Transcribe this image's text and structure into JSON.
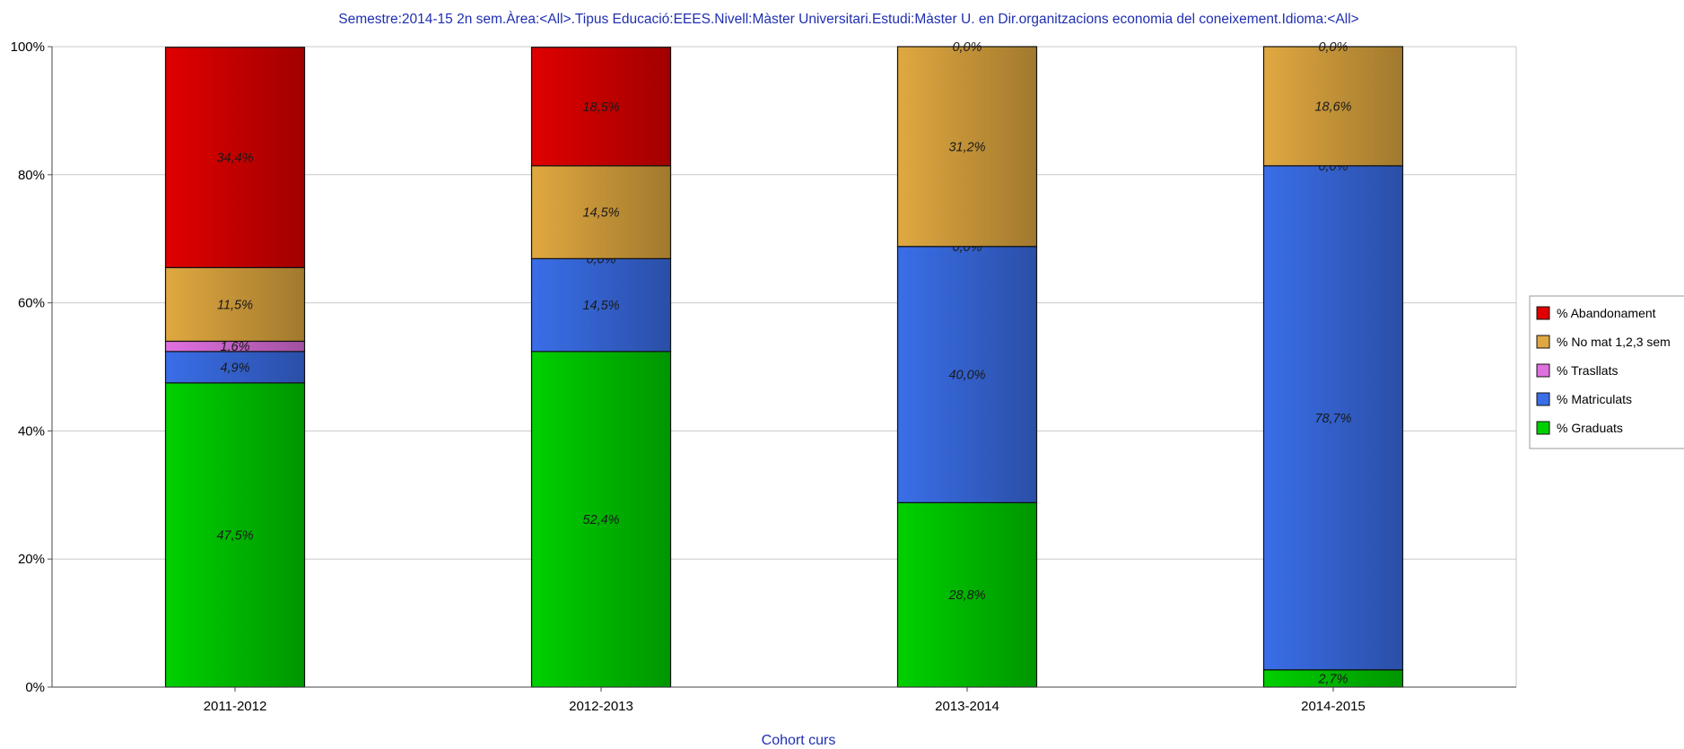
{
  "chart_data": {
    "type": "bar",
    "stacked": true,
    "title": "Semestre:2014-15 2n sem.Àrea:<All>.Tipus Educació:EEES.Nivell:Màster Universitari.Estudi:Màster U. en Dir.organitzacions economia del coneixement.Idioma:<All>",
    "xlabel": "Cohort curs",
    "ylabel": "",
    "ylim": [
      0,
      100
    ],
    "y_ticks": [
      "0%",
      "20%",
      "40%",
      "60%",
      "80%",
      "100%"
    ],
    "grid": true,
    "legend_position": "right",
    "categories": [
      "2011-2012",
      "2012-2013",
      "2013-2014",
      "2014-2015"
    ],
    "series": [
      {
        "name": "% Graduats",
        "color": "#00d000",
        "values": [
          47.5,
          52.4,
          28.8,
          2.7
        ],
        "labels": [
          "47,5%",
          "52,4%",
          "28,8%",
          "2,7%"
        ]
      },
      {
        "name": "% Matriculats",
        "color": "#3a6ee8",
        "values": [
          4.9,
          14.5,
          40.0,
          78.7
        ],
        "labels": [
          "4,9%",
          "14,5%",
          "40,0%",
          "78,7%"
        ]
      },
      {
        "name": "% Trasllats",
        "color": "#e070e0",
        "values": [
          1.6,
          0.0,
          0.0,
          0.0
        ],
        "labels": [
          "1,6%",
          "0,0%",
          "0,0%",
          "0,0%"
        ]
      },
      {
        "name": "% No mat 1,2,3 sem",
        "color": "#e0a840",
        "values": [
          11.5,
          14.5,
          31.2,
          18.6
        ],
        "labels": [
          "11,5%",
          "14,5%",
          "31,2%",
          "18,6%"
        ]
      },
      {
        "name": "% Abandonament",
        "color": "#e00000",
        "values": [
          34.4,
          18.5,
          0.0,
          0.0
        ],
        "labels": [
          "34,4%",
          "18,5%",
          "0,0%",
          "0,0%"
        ]
      }
    ],
    "legend_order": [
      "% Abandonament",
      "% No mat 1,2,3 sem",
      "% Trasllats",
      "% Matriculats",
      "% Graduats"
    ]
  }
}
